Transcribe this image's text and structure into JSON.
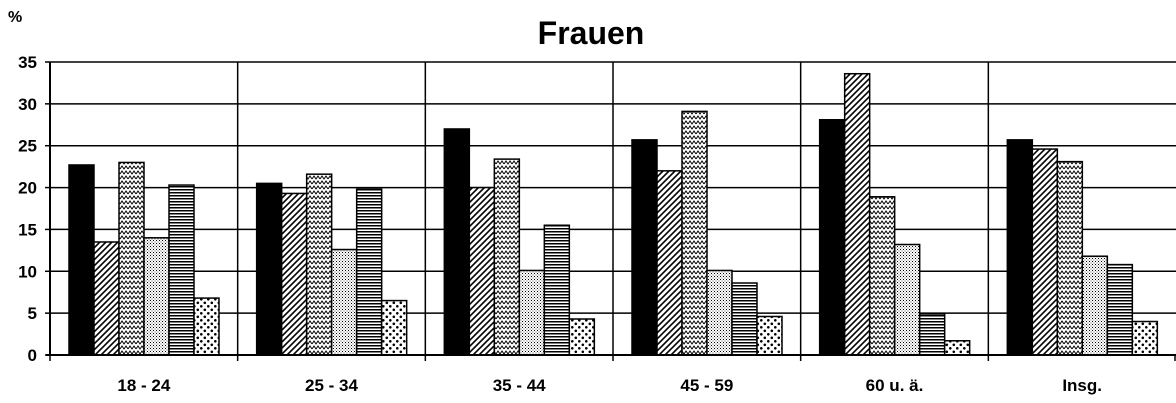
{
  "chart_data": {
    "type": "bar",
    "title": "Frauen",
    "ylabel": "%",
    "xlabel": "",
    "ylim": [
      0,
      35
    ],
    "yticks": [
      0,
      5,
      10,
      15,
      20,
      25,
      30,
      35
    ],
    "grid": true,
    "legend": "none",
    "categories": [
      "18 - 24",
      "25 - 34",
      "35 - 44",
      "45 - 59",
      "60 u. ä.",
      "Insg."
    ],
    "series": [
      {
        "pattern": "solid",
        "values": [
          22.7,
          20.5,
          27.0,
          25.7,
          28.1,
          25.7
        ]
      },
      {
        "pattern": "diagonal",
        "values": [
          13.5,
          19.3,
          20.0,
          22.0,
          33.6,
          24.6
        ]
      },
      {
        "pattern": "zigzag",
        "values": [
          23.0,
          21.6,
          23.4,
          29.1,
          18.9,
          23.1
        ]
      },
      {
        "pattern": "dots-fine",
        "values": [
          14.0,
          12.6,
          10.1,
          10.1,
          13.2,
          11.8
        ]
      },
      {
        "pattern": "horizontal",
        "values": [
          20.3,
          19.8,
          15.5,
          8.6,
          4.9,
          10.8
        ]
      },
      {
        "pattern": "dots-large",
        "values": [
          6.8,
          6.5,
          4.3,
          4.6,
          1.7,
          4.0
        ]
      }
    ]
  }
}
